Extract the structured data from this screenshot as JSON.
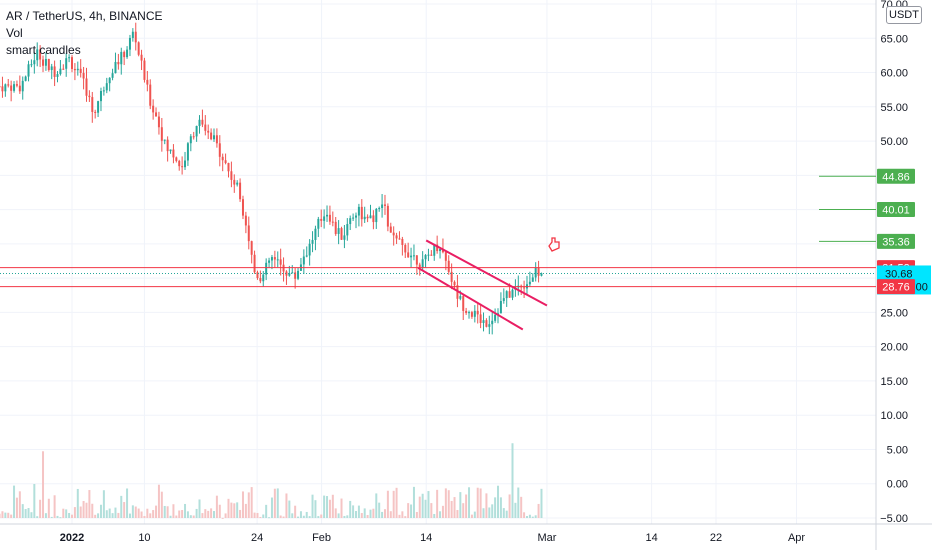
{
  "chart_data": {
    "type": "candlestick",
    "title": "AR / TetherUS, 4h, BINANCE",
    "indicators": [
      "Vol",
      "smart candles"
    ],
    "currency": "USDT",
    "y_ticks": [
      "70.00",
      "65.00",
      "60.00",
      "55.00",
      "50.00",
      "45.00",
      "40.00",
      "35.00",
      "30.00",
      "25.00",
      "20.00",
      "15.00",
      "10.00",
      "5.00",
      "0.00",
      "−5.00"
    ],
    "y_tick_values": [
      70,
      65,
      60,
      55,
      50,
      45,
      40,
      35,
      30,
      25,
      20,
      15,
      10,
      5,
      0,
      -5
    ],
    "ylim": [
      -5.5,
      71
    ],
    "x_ticks": [
      {
        "label": "2022",
        "day": 0,
        "bold": true
      },
      {
        "label": "10",
        "day": 9
      },
      {
        "label": "24",
        "day": 23
      },
      {
        "label": "Feb",
        "day": 31
      },
      {
        "label": "14",
        "day": 44
      },
      {
        "label": "Mar",
        "day": 59
      },
      {
        "label": "14",
        "day": 72
      },
      {
        "label": "22",
        "day": 80
      },
      {
        "label": "Apr",
        "day": 90
      }
    ],
    "price_path": [
      [
        -6,
        58
      ],
      [
        -4,
        63
      ],
      [
        -2,
        60
      ],
      [
        0,
        62
      ],
      [
        2,
        58
      ],
      [
        3,
        54
      ],
      [
        5,
        60
      ],
      [
        7,
        63
      ],
      [
        8,
        66
      ],
      [
        9,
        61
      ],
      [
        10,
        56
      ],
      [
        11,
        53
      ],
      [
        12,
        49
      ],
      [
        13,
        48
      ],
      [
        14,
        46
      ],
      [
        15,
        50
      ],
      [
        16,
        53
      ],
      [
        17,
        51
      ],
      [
        18,
        50
      ],
      [
        19,
        48
      ],
      [
        20,
        45
      ],
      [
        21,
        43
      ],
      [
        22,
        38
      ],
      [
        23,
        31
      ],
      [
        24,
        30
      ],
      [
        25,
        33
      ],
      [
        26,
        32
      ],
      [
        27,
        31
      ],
      [
        28,
        30
      ],
      [
        29,
        33
      ],
      [
        30,
        35
      ],
      [
        31,
        38
      ],
      [
        32,
        40
      ],
      [
        33,
        37
      ],
      [
        34,
        36
      ],
      [
        35,
        39
      ],
      [
        36,
        40
      ],
      [
        37,
        38
      ],
      [
        38,
        39
      ],
      [
        39,
        41
      ],
      [
        40,
        36
      ],
      [
        41,
        35
      ],
      [
        42,
        34
      ],
      [
        43,
        33
      ],
      [
        44,
        32
      ],
      [
        45,
        34
      ],
      [
        46,
        35
      ],
      [
        47,
        32
      ],
      [
        48,
        28
      ],
      [
        49,
        26
      ],
      [
        50,
        25
      ],
      [
        51,
        24
      ],
      [
        52,
        23.5
      ],
      [
        53,
        25
      ],
      [
        54,
        27
      ],
      [
        55,
        28
      ],
      [
        56,
        29
      ],
      [
        57,
        29.5
      ],
      [
        58,
        30.7
      ]
    ],
    "volume": {
      "max": 13.5
    },
    "horizontal_lines": [
      {
        "value": 31.53,
        "label": "31.53",
        "color": "#f23645"
      },
      {
        "value": 28.76,
        "label": "28.76",
        "color": "#f23645"
      }
    ],
    "targets": [
      {
        "value": 44.86,
        "label": "44.86",
        "color": "#4caf50"
      },
      {
        "value": 40.01,
        "label": "40.01",
        "color": "#4caf50"
      },
      {
        "value": 35.36,
        "label": "35.36",
        "color": "#4caf50"
      }
    ],
    "current_price": {
      "value": 30.68,
      "label": "30.68",
      "countdown": "03:04:00",
      "color": "#00e5ff"
    },
    "channel": [
      {
        "from": [
          44,
          35.5
        ],
        "to": [
          59,
          26
        ]
      },
      {
        "from": [
          43,
          31.5
        ],
        "to": [
          56,
          22.5
        ]
      }
    ],
    "colors": {
      "up": "#26a69a",
      "down": "#ef5350",
      "vol_up": "#b2dfdb",
      "vol_down": "#f5c4c4",
      "channel": "#e91e63",
      "grid": "#f0f3fa"
    }
  }
}
